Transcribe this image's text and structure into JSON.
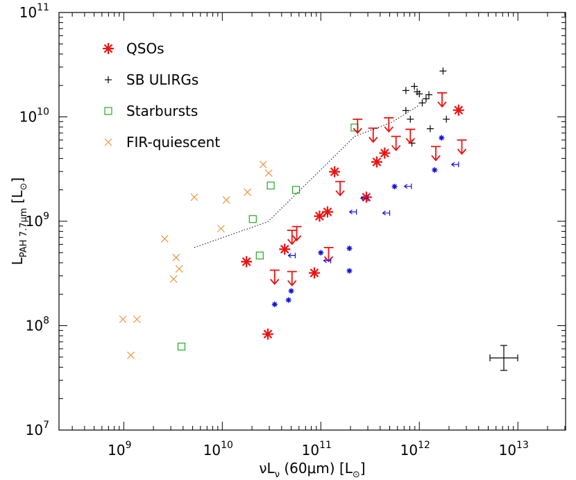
{
  "chart_data": {
    "type": "scatter",
    "xlog": true,
    "ylog": true,
    "minor_ticks": true,
    "xlim": [
      220000000.0,
      30500000000000.0
    ],
    "ylim": [
      10000000.0,
      100000000000.0
    ],
    "xticks": [
      {
        "value": 1000000000.0,
        "label": "10",
        "exponent": "9"
      },
      {
        "value": 10000000000.0,
        "label": "10",
        "exponent": "10"
      },
      {
        "value": 100000000000.0,
        "label": "10",
        "exponent": "11"
      },
      {
        "value": 1000000000000.0,
        "label": "10",
        "exponent": "12"
      },
      {
        "value": 10000000000000.0,
        "label": "10",
        "exponent": "13"
      }
    ],
    "yticks": [
      {
        "value": 10000000.0,
        "label": "10",
        "exponent": "7"
      },
      {
        "value": 100000000.0,
        "label": "10",
        "exponent": "8"
      },
      {
        "value": 1000000000.0,
        "label": "10",
        "exponent": "9"
      },
      {
        "value": 10000000000.0,
        "label": "10",
        "exponent": "10"
      },
      {
        "value": 100000000000.0,
        "label": "10",
        "exponent": "11"
      }
    ],
    "xlabel": [
      {
        "text": "νL"
      },
      {
        "text": "ν",
        "sub": true
      },
      {
        "text": " (60μm) [L"
      },
      {
        "text": "⊙",
        "sub": true
      },
      {
        "text": "]"
      }
    ],
    "ylabel": [
      {
        "text": "L"
      },
      {
        "text": "PAH 7.7μm",
        "sub": true
      },
      {
        "text": " [L"
      },
      {
        "text": "⊙",
        "sub": true
      },
      {
        "text": "]"
      }
    ],
    "legend": "upper left",
    "series": [
      {
        "name": "QSOs",
        "color": "#ee1111",
        "marker": "asterisk",
        "x": [
          17600000000.0,
          29000000000.0,
          43000000000.0,
          86000000000.0,
          97000000000.0,
          117000000000.0,
          138000000000.0,
          290000000000.0,
          370000000000.0,
          445000000000.0,
          2500000000000.0
        ],
        "y": [
          410000000.0,
          83000000.0,
          540000000.0,
          320000000.0,
          1120000000.0,
          1230000000.0,
          2980000000.0,
          1700000000.0,
          3700000000.0,
          4500000000.0,
          11600000000.0
        ]
      },
      {
        "name": "SB ULIRGs",
        "color": "#000000",
        "marker": "plus",
        "x": [
          1740000000000.0,
          890000000000.0,
          950000000000.0,
          1000000000000.0,
          1070000000000.0,
          1170000000000.0,
          1250000000000.0,
          730000000000.0,
          730000000000.0,
          810000000000.0,
          840000000000.0,
          1290000000000.0,
          1880000000000.0
        ],
        "y": [
          27500000000.0,
          19600000000.0,
          17400000000.0,
          16600000000.0,
          13600000000.0,
          14900000000.0,
          16300000000.0,
          17900000000.0,
          11500000000.0,
          9500000000.0,
          5600000000.0,
          7700000000.0,
          9500000000.0
        ]
      },
      {
        "name": "Starbursts",
        "color": "#22aa22",
        "marker": "square",
        "x": [
          3850000000.0,
          24000000000.0,
          20400000000.0,
          31000000000.0,
          56000000000.0,
          220000000000.0
        ],
        "y": [
          63000000.0,
          470000000.0,
          1050000000.0,
          2200000000.0,
          2000000000.0,
          7900000000.0
        ]
      },
      {
        "name": "FIR-quiescent",
        "color": "#f0923a",
        "marker": "cross",
        "x": [
          980000000.0,
          1360000000.0,
          1180000000.0,
          2600000000.0,
          3200000000.0,
          3400000000.0,
          3650000000.0,
          5200000000.0,
          9700000000.0,
          11000000000.0,
          18000000000.0,
          26000000000.0,
          29600000000.0
        ],
        "y": [
          115000000.0,
          115000000.0,
          52000000.0,
          680000000.0,
          280000000.0,
          450000000.0,
          350000000.0,
          1700000000.0,
          850000000.0,
          1600000000.0,
          1900000000.0,
          3500000000.0,
          2900000000.0
        ]
      },
      {
        "color": "#ee1111",
        "marker": "down-arrow",
        "x": [
          34000000000.0,
          51000000000.0,
          57000000000.0,
          51000000000.0,
          120000000000.0,
          157000000000.0,
          236000000000.0,
          340000000000.0,
          490000000000.0,
          580000000000.0,
          810000000000.0,
          1470000000000.0,
          1700000000000.0,
          2700000000000.0
        ],
        "y": [
          340000000.0,
          820000000.0,
          890000000.0,
          330000000.0,
          560000000.0,
          2400000000.0,
          9500000000.0,
          7800000000.0,
          9800000000.0,
          6500000000.0,
          7600000000.0,
          5200000000.0,
          17000000000.0,
          6000000000.0
        ]
      },
      {
        "color": "#1111dd",
        "marker": "small-asterisk",
        "x": [
          34000000000.0,
          47000000000.0,
          50000000000.0,
          100000000000.0,
          195000000000.0,
          195000000000.0,
          560000000000.0,
          1430000000000.0,
          1680000000000.0
        ],
        "y": [
          160000000.0,
          176000000.0,
          215000000.0,
          500000000.0,
          550000000.0,
          335000000.0,
          2150000000.0,
          3100000000.0,
          6300000000.0
        ]
      },
      {
        "color": "#1111dd",
        "marker": "left-arrow",
        "x": [
          55000000000.0,
          126000000000.0,
          230000000000.0,
          300000000000.0,
          500000000000.0,
          830000000000.0,
          2500000000000.0
        ],
        "y": [
          470000000.0,
          420000000.0,
          1230000000.0,
          1660000000.0,
          1200000000.0,
          2160000000.0,
          3500000000.0
        ]
      },
      {
        "color": "#000000",
        "marker": "dotted-line",
        "x": [
          5200000000.0,
          29000000000.0,
          89000000000.0,
          220000000000.0,
          530000000000.0,
          1000000000000.0
        ],
        "y": [
          560000000.0,
          990000000.0,
          2800000000.0,
          6500000000.0,
          8900000000.0,
          13000000000.0
        ]
      }
    ]
  }
}
